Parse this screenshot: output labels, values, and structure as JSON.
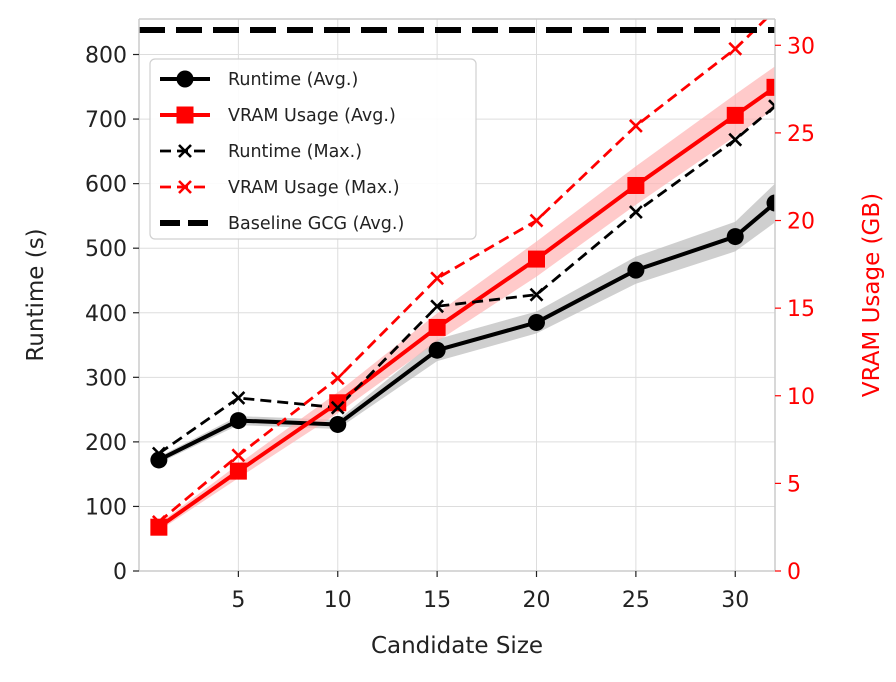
{
  "chart_data": {
    "type": "line",
    "title": "",
    "xlabel": "Candidate Size",
    "ylabel_left": "Runtime (s)",
    "ylabel_right": "VRAM Usage (GB)",
    "xlim": [
      0,
      32
    ],
    "ylim_left": [
      0,
      855
    ],
    "ylim_right": [
      0,
      31.5
    ],
    "x_ticks": [
      5,
      10,
      15,
      20,
      25,
      30
    ],
    "y_left_ticks": [
      0,
      100,
      200,
      300,
      400,
      500,
      600,
      700,
      800
    ],
    "y_right_ticks": [
      0,
      5,
      10,
      15,
      20,
      25,
      30
    ],
    "grid": true,
    "legend_position": "top-left",
    "colors": {
      "runtime": "#000000",
      "vram": "#ff0000",
      "band_runtime": "#bbbbbb",
      "band_vram": "#ffb3b3",
      "grid": "#dddddd",
      "spine": "#cccccc"
    },
    "x": [
      1,
      5,
      10,
      15,
      20,
      25,
      30,
      32
    ],
    "series": [
      {
        "name": "Runtime (Avg.)",
        "axis": "left",
        "style": "solid",
        "marker": "circle",
        "values": [
          172,
          233,
          227,
          342,
          385,
          466,
          518,
          570
        ],
        "band_low": [
          167,
          226,
          220,
          325,
          368,
          445,
          495,
          540
        ],
        "band_high": [
          177,
          240,
          234,
          359,
          402,
          487,
          541,
          600
        ]
      },
      {
        "name": "VRAM Usage (Avg.)",
        "axis": "right",
        "style": "solid",
        "marker": "square",
        "values": [
          2.5,
          5.7,
          9.6,
          13.9,
          17.8,
          22.0,
          26.0,
          27.6
        ],
        "band_low": [
          2.3,
          5.3,
          9.0,
          13.1,
          16.8,
          20.9,
          24.8,
          26.4
        ],
        "band_high": [
          2.7,
          6.1,
          10.2,
          14.7,
          18.8,
          23.1,
          27.2,
          28.8
        ]
      },
      {
        "name": "Runtime (Max.)",
        "axis": "left",
        "style": "dashed",
        "marker": "x",
        "values": [
          182,
          268,
          253,
          410,
          428,
          556,
          668,
          720
        ]
      },
      {
        "name": "VRAM Usage (Max.)",
        "axis": "right",
        "style": "dashed",
        "marker": "x",
        "values": [
          2.8,
          6.6,
          11.0,
          16.7,
          20.0,
          25.4,
          29.8,
          32.0
        ]
      },
      {
        "name": "Baseline GCG (Avg.)",
        "axis": "left",
        "style": "thick-dashed",
        "marker": "none",
        "values": [
          838,
          838,
          838,
          838,
          838,
          838,
          838,
          838
        ]
      }
    ]
  }
}
